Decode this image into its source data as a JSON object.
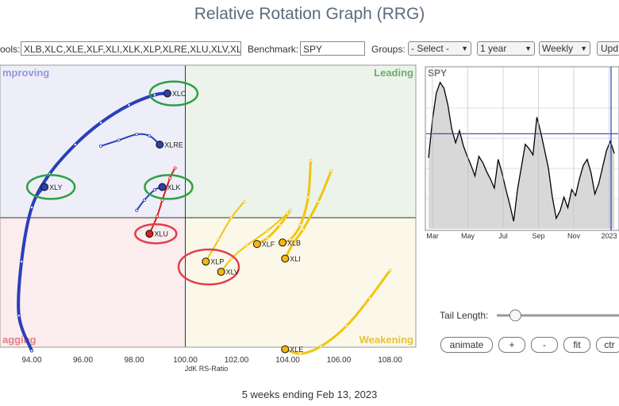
{
  "title": "Relative Rotation Graph (RRG)",
  "toolbar": {
    "symbols_label": "ools:",
    "symbols_value": "XLB,XLC,XLE,XLF,XLI,XLK,XLP,XLRE,XLU,XLV,XL",
    "benchmark_label": "Benchmark:",
    "benchmark_value": "SPY",
    "groups_label": "Groups:",
    "groups_select": "- Select -",
    "period_select": "1 year",
    "frequency_select": "Weekly",
    "update_button": "Upd"
  },
  "chart_data": [
    {
      "type": "scatter",
      "title": "",
      "xlabel": "JdK RS-Ratio",
      "ylabel": "",
      "xlim": [
        92.6,
        108.6
      ],
      "ylim": [
        -1,
        1
      ],
      "x_ticks": [
        "94.00",
        "96.00",
        "98.00",
        "100.00",
        "102.00",
        "104.00",
        "106.00",
        "108.00"
      ],
      "quadrants": {
        "top_left": "Improving",
        "top_right": "Leading",
        "bottom_left": "Lagging",
        "bottom_right": "Weakening"
      },
      "quadrant_label_prefix_trim": {
        "top_left": "mproving",
        "bottom_left": "agging"
      },
      "series": [
        {
          "name": "XLC",
          "label": "XLC",
          "color": "#2940b8",
          "highlight": "green",
          "points": [
            [
              94.0,
              -0.91
            ],
            [
              93.5,
              -0.67
            ],
            [
              93.6,
              -0.3
            ],
            [
              94.0,
              0.07
            ],
            [
              94.7,
              0.3
            ],
            [
              95.7,
              0.5
            ],
            [
              96.7,
              0.65
            ],
            [
              97.8,
              0.77
            ],
            [
              98.8,
              0.84
            ],
            [
              99.3,
              0.85
            ]
          ]
        },
        {
          "name": "XLY",
          "label": "XLY",
          "color": "#2940b8",
          "highlight": "green",
          "points": [
            [
              94.0,
              -0.91
            ],
            [
              93.5,
              -0.67
            ],
            [
              93.6,
              -0.3
            ],
            [
              94.0,
              0.07
            ],
            [
              94.5,
              0.21
            ]
          ]
        },
        {
          "name": "XLRE",
          "label": "XLRE",
          "color": "#2940b8",
          "highlight": "",
          "points": [
            [
              96.7,
              0.49
            ],
            [
              97.4,
              0.53
            ],
            [
              98.1,
              0.57
            ],
            [
              98.6,
              0.56
            ],
            [
              99.0,
              0.5
            ]
          ]
        },
        {
          "name": "XLK",
          "label": "XLK",
          "color": "#2940b8",
          "highlight": "green",
          "points": [
            [
              98.1,
              0.05
            ],
            [
              98.4,
              0.12
            ],
            [
              98.8,
              0.19
            ],
            [
              99.1,
              0.21
            ]
          ]
        },
        {
          "name": "XLU",
          "label": "XLU",
          "color": "#d81e1e",
          "highlight": "red",
          "points": [
            [
              99.6,
              0.34
            ],
            [
              99.4,
              0.27
            ],
            [
              99.1,
              0.12
            ],
            [
              98.9,
              0.01
            ],
            [
              98.6,
              -0.11
            ]
          ]
        },
        {
          "name": "XLF",
          "label": "XLF",
          "color": "#f1c40f",
          "highlight": "",
          "points": [
            [
              104.1,
              0.05
            ],
            [
              103.7,
              -0.05
            ],
            [
              103.2,
              -0.14
            ],
            [
              102.8,
              -0.18
            ]
          ]
        },
        {
          "name": "XLB",
          "label": "XLB",
          "color": "#f1c40f",
          "highlight": "",
          "points": [
            [
              104.9,
              0.39
            ],
            [
              104.8,
              0.14
            ],
            [
              104.5,
              -0.05
            ],
            [
              104.1,
              -0.15
            ],
            [
              103.8,
              -0.17
            ]
          ]
        },
        {
          "name": "XLI",
          "label": "XLI",
          "color": "#f1c40f",
          "highlight": "",
          "points": [
            [
              105.7,
              0.32
            ],
            [
              105.2,
              0.11
            ],
            [
              104.6,
              -0.08
            ],
            [
              104.2,
              -0.18
            ],
            [
              103.9,
              -0.28
            ]
          ]
        },
        {
          "name": "XLP",
          "label": "XLP",
          "color": "#f1c40f",
          "highlight": "red",
          "points": [
            [
              102.3,
              0.11
            ],
            [
              101.8,
              0.0
            ],
            [
              101.3,
              -0.15
            ],
            [
              100.8,
              -0.3
            ]
          ]
        },
        {
          "name": "XLV",
          "label": "XLV",
          "color": "#f1c40f",
          "highlight": "red",
          "points": [
            [
              104.0,
              0.03
            ],
            [
              103.2,
              -0.09
            ],
            [
              102.4,
              -0.19
            ],
            [
              101.8,
              -0.28
            ],
            [
              101.4,
              -0.37
            ]
          ]
        },
        {
          "name": "XLE",
          "label": "XLE",
          "color": "#f1c40f",
          "highlight": "",
          "points": [
            [
              108.0,
              -0.36
            ],
            [
              107.2,
              -0.55
            ],
            [
              106.3,
              -0.74
            ],
            [
              105.3,
              -0.88
            ],
            [
              104.5,
              -0.93
            ],
            [
              103.9,
              -0.9
            ]
          ]
        }
      ]
    },
    {
      "type": "line",
      "title": "",
      "series_label": "SPY",
      "x_ticks": [
        "Mar",
        "May",
        "Jul",
        "Sep",
        "Nov",
        "2023"
      ],
      "ylim": [
        0,
        1
      ],
      "reference_line": 0.63,
      "values": [
        0.47,
        0.72,
        0.9,
        0.97,
        0.93,
        0.82,
        0.66,
        0.57,
        0.65,
        0.55,
        0.48,
        0.42,
        0.35,
        0.48,
        0.44,
        0.38,
        0.33,
        0.27,
        0.46,
        0.37,
        0.26,
        0.16,
        0.05,
        0.26,
        0.41,
        0.56,
        0.53,
        0.49,
        0.74,
        0.64,
        0.52,
        0.4,
        0.21,
        0.07,
        0.12,
        0.21,
        0.14,
        0.26,
        0.22,
        0.33,
        0.42,
        0.46,
        0.37,
        0.23,
        0.3,
        0.41,
        0.52,
        0.58,
        0.5
      ]
    }
  ],
  "controls": {
    "tail_length_label": "Tail Length:",
    "tail_length_value": 0.1,
    "buttons": {
      "animate": "animate",
      "plus": "+",
      "minus": "-",
      "fit": "fit",
      "ctr": "ctr"
    }
  },
  "footer": "5 weeks ending Feb 13, 2023",
  "colors": {
    "improving_bg": "#eeeef8",
    "leading_bg": "#ebf3ea",
    "lagging_bg": "#fbecee",
    "weakening_bg": "#fbf8ea",
    "blue": "#2940b8",
    "red": "#d81e1e",
    "yellow": "#f1c40f",
    "highlight_green": "#2ea043",
    "highlight_red": "#e0404a"
  }
}
